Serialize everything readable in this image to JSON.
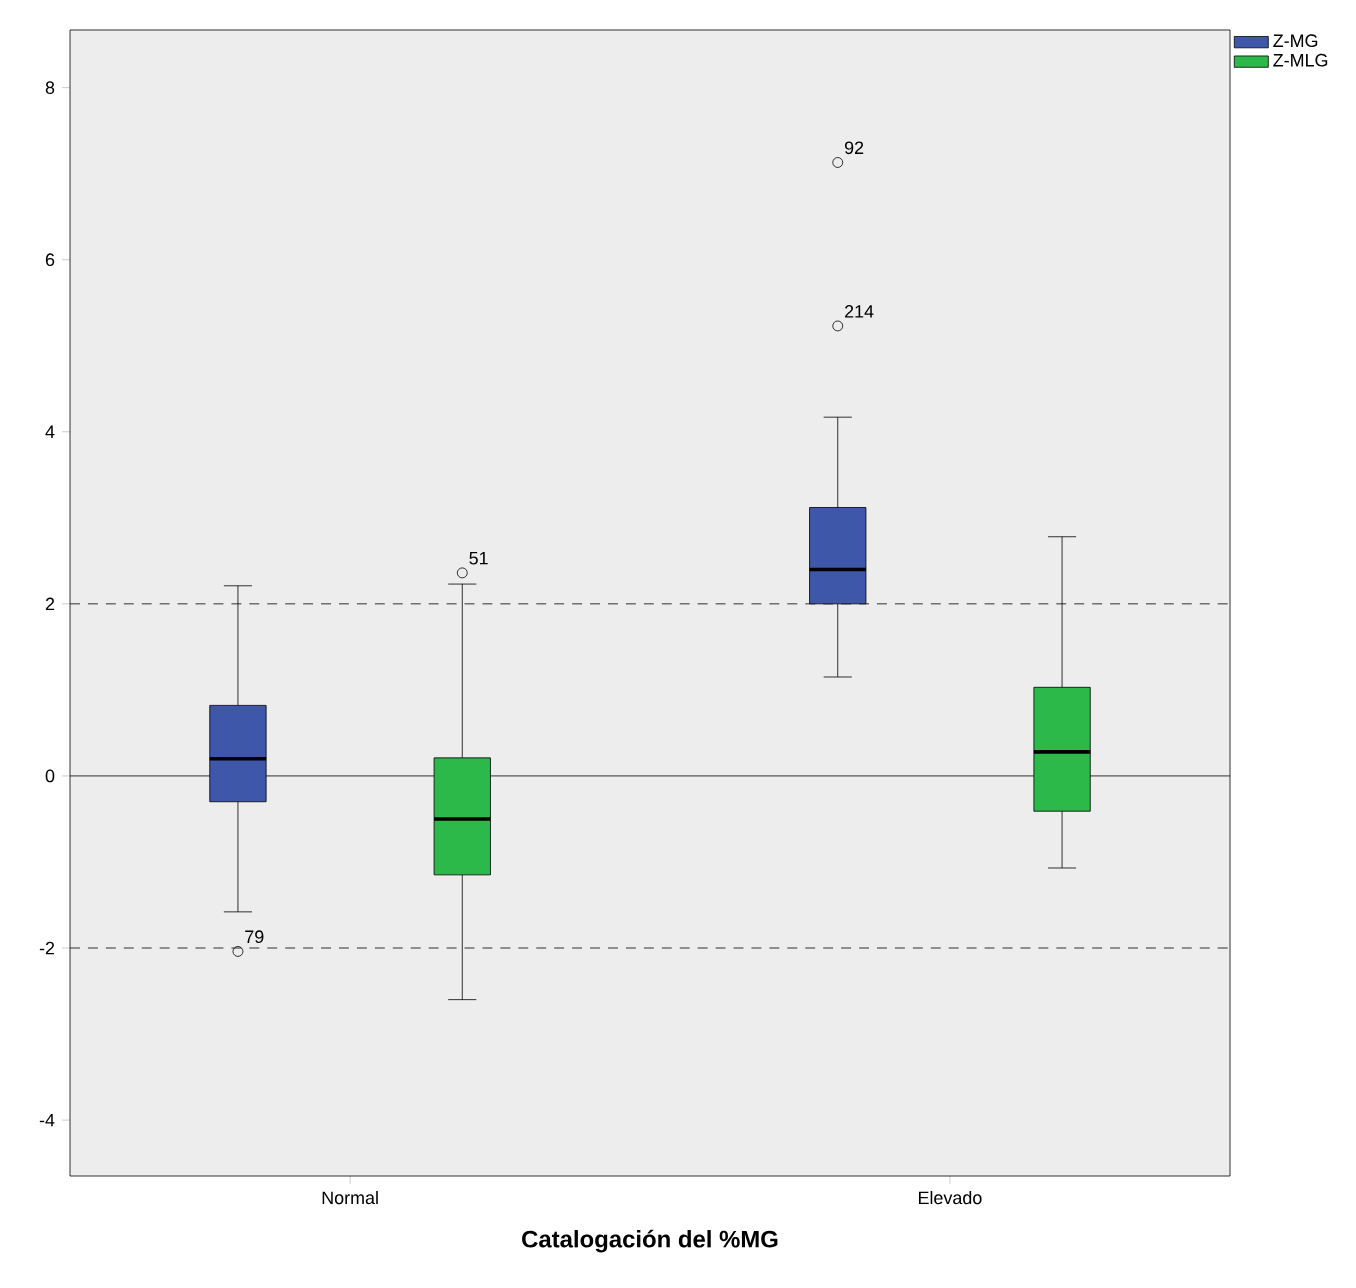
{
  "chart_data": {
    "type": "box",
    "xlabel": "Catalogación del %MG",
    "categories": [
      "Normal",
      "Elevado"
    ],
    "series": [
      {
        "name": "Z-MG",
        "color": "#3f57a8",
        "boxes": [
          {
            "low": -1.58,
            "q1": -0.3,
            "median": 0.2,
            "q3": 0.82,
            "high": 2.21,
            "outliers": [
              -2.04
            ]
          },
          {
            "low": 1.15,
            "q1": 2.0,
            "median": 2.4,
            "q3": 3.12,
            "high": 4.17,
            "outliers": [
              5.23,
              7.13
            ]
          }
        ]
      },
      {
        "name": "Z-MLG",
        "color": "#2db84a",
        "boxes": [
          {
            "low": -2.6,
            "q1": -1.15,
            "median": -0.5,
            "q3": 0.21,
            "high": 2.23,
            "outliers": [
              2.36
            ]
          },
          {
            "low": -1.07,
            "q1": -0.41,
            "median": 0.28,
            "q3": 1.03,
            "high": 2.78
          }
        ]
      }
    ],
    "ylim": [
      -4.65,
      8.67
    ],
    "yticks": [
      -4,
      -2,
      0,
      2,
      4,
      6,
      8
    ],
    "ref_lines": [
      {
        "axis": "y",
        "value": 2,
        "line_style": "dashed"
      },
      {
        "axis": "y",
        "value": -2,
        "line_style": "dashed"
      },
      {
        "axis": "y",
        "value": 0,
        "line_style": "solid"
      }
    ],
    "annotations": [
      "79",
      "214",
      "92",
      "51"
    ],
    "legend": "top right",
    "grid": false
  }
}
